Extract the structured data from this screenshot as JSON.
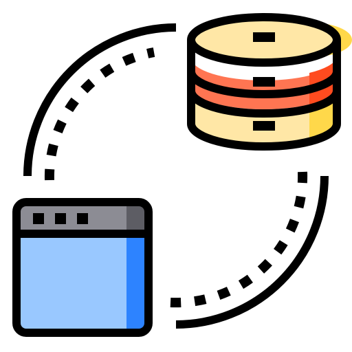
{
  "icon": {
    "name": "database-sync-icon",
    "parts": [
      "database-icon",
      "browser-window-icon",
      "sync-arc-icon"
    ]
  },
  "colors": {
    "outline": "#000000",
    "background": "#ffffff",
    "database_top": "#ffe7a6",
    "database_top_shade": "#ffd84a",
    "database_middle": "#ff7552",
    "database_middle_shade": "#ff4b1f",
    "database_bottom": "#ffe7a6",
    "database_bottom_shade": "#ffd84a",
    "window_titlebar": "#8c8c94",
    "window_titlebar_shade": "#5d5d64",
    "window_body": "#99c8ff",
    "window_body_shade": "#2d83ff"
  }
}
